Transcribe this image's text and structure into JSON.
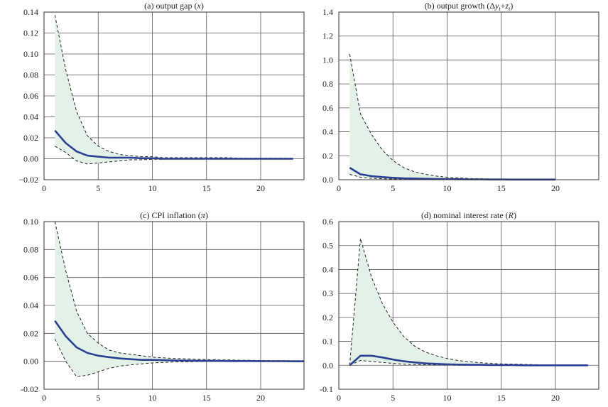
{
  "chart_data": [
    {
      "type": "line",
      "title": "(a) output gap (x)",
      "title_parts": [
        "(a) output gap (",
        "x",
        ")"
      ],
      "xlim": [
        0,
        24
      ],
      "ylim": [
        -0.02,
        0.14
      ],
      "xticks": [
        0,
        5,
        10,
        15,
        20
      ],
      "yticks": [
        -0.02,
        0.0,
        0.02,
        0.04,
        0.06,
        0.08,
        0.1,
        0.12,
        0.14
      ],
      "ytick_labels": [
        "−0.02",
        "0.00",
        "0.02",
        "0.04",
        "0.06",
        "0.08",
        "0.10",
        "0.12",
        "0.14"
      ],
      "grid": true,
      "band_color": "#e3f2e6",
      "x": [
        1,
        2,
        3,
        4,
        5,
        6,
        7,
        8,
        9,
        10,
        11,
        12,
        13,
        14,
        15,
        16,
        17,
        18,
        19,
        20,
        21,
        22,
        23
      ],
      "series": [
        {
          "role": "upper",
          "style": "dashed",
          "color": "#222222",
          "values": [
            0.137,
            0.085,
            0.045,
            0.022,
            0.012,
            0.007,
            0.004,
            0.003,
            0.002,
            0.002,
            0.001,
            0.001,
            0.001,
            0.001,
            0.001,
            0.001,
            0.001,
            0.0005,
            0.0005,
            0.0005,
            0.0005,
            0.0005,
            0.0005
          ]
        },
        {
          "role": "median",
          "style": "solid",
          "color": "#2b3f94",
          "values": [
            0.027,
            0.015,
            0.007,
            0.003,
            0.002,
            0.001,
            0.001,
            0.001,
            0.0005,
            0.0005,
            0.0,
            0.0,
            0.0,
            0.0,
            0.0,
            0.0,
            0.0,
            0.0,
            0.0,
            0.0,
            0.0,
            0.0,
            0.0
          ]
        },
        {
          "role": "lower",
          "style": "dashed",
          "color": "#222222",
          "values": [
            0.012,
            0.006,
            -0.002,
            -0.005,
            -0.004,
            -0.003,
            -0.002,
            -0.001,
            -0.001,
            -0.0005,
            -0.0005,
            0.0,
            0.0,
            0.0,
            0.0,
            0.0,
            0.0,
            0.0,
            0.0,
            0.0,
            0.0,
            0.0,
            0.0
          ]
        }
      ]
    },
    {
      "type": "line",
      "title": "(b) output growth (Δyₜ+zₜ)",
      "title_parts": [
        "(b) output growth (Δ",
        "y",
        "t",
        "+",
        "z",
        "t",
        ")"
      ],
      "xlim": [
        0,
        24
      ],
      "ylim": [
        0,
        1.4
      ],
      "xticks": [
        0,
        5,
        10,
        15,
        20
      ],
      "yticks": [
        0.0,
        0.2,
        0.4,
        0.6,
        0.8,
        1.0,
        1.2,
        1.4
      ],
      "ytick_labels": [
        "0.0",
        "0.2",
        "0.4",
        "0.6",
        "0.8",
        "1.0",
        "1.2",
        "1.4"
      ],
      "grid": true,
      "band_color": "#e3f2e6",
      "x": [
        1,
        2,
        3,
        4,
        5,
        6,
        7,
        8,
        9,
        10,
        11,
        12,
        13,
        14,
        15,
        16,
        17,
        18,
        19,
        20
      ],
      "series": [
        {
          "role": "upper",
          "style": "dashed",
          "color": "#222222",
          "values": [
            1.05,
            0.55,
            0.38,
            0.25,
            0.16,
            0.1,
            0.065,
            0.045,
            0.03,
            0.02,
            0.015,
            0.01,
            0.008,
            0.006,
            0.005,
            0.004,
            0.003,
            0.002,
            0.002,
            0.001
          ]
        },
        {
          "role": "median",
          "style": "solid",
          "color": "#2b3f94",
          "values": [
            0.1,
            0.045,
            0.03,
            0.022,
            0.016,
            0.012,
            0.01,
            0.008,
            0.006,
            0.005,
            0.004,
            0.003,
            0.003,
            0.002,
            0.002,
            0.001,
            0.001,
            0.001,
            0.001,
            0.001
          ]
        },
        {
          "role": "lower",
          "style": "dashed",
          "color": "#222222",
          "values": [
            0.045,
            0.02,
            0.012,
            0.008,
            0.006,
            0.004,
            0.003,
            0.002,
            0.002,
            0.001,
            0.001,
            0.001,
            0.0,
            0.0,
            0.0,
            0.0,
            0.0,
            0.0,
            0.0,
            0.0
          ]
        }
      ]
    },
    {
      "type": "line",
      "title": "(c) CPI inflation (π)",
      "title_parts": [
        "(c) CPI inflation (",
        "π",
        ")"
      ],
      "xlim": [
        0,
        24
      ],
      "ylim": [
        -0.02,
        0.1
      ],
      "xticks": [
        0,
        5,
        10,
        15,
        20
      ],
      "yticks": [
        -0.02,
        0.0,
        0.02,
        0.04,
        0.06,
        0.08,
        0.1
      ],
      "ytick_labels": [
        "-0.02",
        "0.00",
        "0.02",
        "0.04",
        "0.06",
        "0.08",
        "0.10"
      ],
      "grid": true,
      "band_color": "#e3f2e6",
      "x": [
        1,
        2,
        3,
        4,
        5,
        6,
        7,
        8,
        9,
        10,
        11,
        12,
        13,
        14,
        15,
        16,
        17,
        18,
        19,
        20,
        21,
        22,
        23,
        24
      ],
      "series": [
        {
          "role": "upper",
          "style": "dashed",
          "color": "#222222",
          "values": [
            0.1,
            0.065,
            0.036,
            0.02,
            0.013,
            0.008,
            0.006,
            0.005,
            0.004,
            0.003,
            0.0025,
            0.002,
            0.0018,
            0.0015,
            0.0012,
            0.001,
            0.001,
            0.0008,
            0.0007,
            0.0006,
            0.0005,
            0.0005,
            0.0004,
            0.0004
          ]
        },
        {
          "role": "median",
          "style": "solid",
          "color": "#2b3f94",
          "values": [
            0.029,
            0.018,
            0.01,
            0.006,
            0.004,
            0.003,
            0.002,
            0.0015,
            0.001,
            0.001,
            0.0008,
            0.0006,
            0.0005,
            0.0004,
            0.0003,
            0.0003,
            0.0002,
            0.0002,
            0.0002,
            0.0001,
            0.0001,
            0.0001,
            0.0,
            0.0
          ]
        },
        {
          "role": "lower",
          "style": "dashed",
          "color": "#222222",
          "values": [
            0.016,
            0.0,
            -0.011,
            -0.01,
            -0.0075,
            -0.005,
            -0.0035,
            -0.0025,
            -0.0018,
            -0.0012,
            -0.0008,
            -0.0005,
            -0.0003,
            -0.0002,
            -0.0001,
            0.0,
            0.0,
            0.0,
            0.0,
            0.0,
            0.0,
            0.0,
            0.0,
            0.0
          ]
        }
      ]
    },
    {
      "type": "line",
      "title": "(d) nominal interest rate (R)",
      "title_parts": [
        "(d) nominal interest rate (",
        "R",
        ")"
      ],
      "xlim": [
        0,
        24
      ],
      "ylim": [
        -0.1,
        0.6
      ],
      "xticks": [
        0,
        5,
        10,
        15,
        20
      ],
      "yticks": [
        -0.1,
        0.0,
        0.1,
        0.2,
        0.3,
        0.4,
        0.5,
        0.6
      ],
      "ytick_labels": [
        "-0.1",
        "0.0",
        "0.1",
        "0.2",
        "0.3",
        "0.4",
        "0.5",
        "0.6"
      ],
      "grid": true,
      "band_color": "#e3f2e6",
      "x": [
        1,
        2,
        3,
        4,
        5,
        6,
        7,
        8,
        9,
        10,
        11,
        12,
        13,
        14,
        15,
        16,
        17,
        18,
        19,
        20,
        21,
        22,
        23
      ],
      "series": [
        {
          "role": "upper",
          "style": "dashed",
          "color": "#222222",
          "values": [
            0.0,
            0.53,
            0.37,
            0.26,
            0.18,
            0.12,
            0.08,
            0.055,
            0.04,
            0.028,
            0.02,
            0.015,
            0.011,
            0.008,
            0.006,
            0.005,
            0.004,
            0.003,
            0.002,
            0.002,
            0.001,
            0.001,
            0.001
          ]
        },
        {
          "role": "median",
          "style": "solid",
          "color": "#2b3f94",
          "values": [
            0.0,
            0.04,
            0.04,
            0.033,
            0.024,
            0.017,
            0.012,
            0.008,
            0.006,
            0.004,
            0.003,
            0.002,
            0.002,
            0.001,
            0.001,
            0.001,
            0.0,
            0.0,
            0.0,
            0.0,
            0.0,
            0.0,
            0.0
          ]
        },
        {
          "role": "lower",
          "style": "dashed",
          "color": "#222222",
          "values": [
            0.0,
            0.02,
            0.016,
            0.012,
            0.008,
            0.005,
            0.003,
            0.002,
            0.001,
            0.001,
            0.0,
            0.0,
            0.0,
            0.0,
            0.0,
            0.0,
            0.0,
            0.0,
            0.0,
            0.0,
            0.0,
            0.0,
            0.0
          ]
        }
      ]
    }
  ]
}
